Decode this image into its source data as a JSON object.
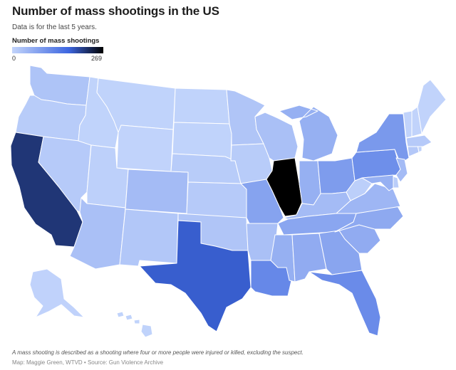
{
  "title": "Number of mass shootings in the US",
  "subtitle": "Data is for the last 5 years.",
  "legend": {
    "title": "Number of mass shootings",
    "min_label": "0",
    "max_label": "269",
    "min": 0,
    "max": 269,
    "color_low": "#c2d4fb",
    "color_mid": "#3d66e0",
    "color_high": "#000000"
  },
  "note": "A mass shooting is described as a shooting where four or more people were injured or killed, excluding the suspect.",
  "credit": "Map: Maggie Green, WTVD • Source: Gun Violence Archive",
  "map_data": {
    "type": "choropleth",
    "states": [
      {
        "name": "Washington",
        "value": 25
      },
      {
        "name": "Oregon",
        "value": 12
      },
      {
        "name": "California",
        "value": 215
      },
      {
        "name": "Nevada",
        "value": 15
      },
      {
        "name": "Idaho",
        "value": 2
      },
      {
        "name": "Montana",
        "value": 2
      },
      {
        "name": "Wyoming",
        "value": 1
      },
      {
        "name": "Utah",
        "value": 6
      },
      {
        "name": "Arizona",
        "value": 30
      },
      {
        "name": "Colorado",
        "value": 38
      },
      {
        "name": "New Mexico",
        "value": 20
      },
      {
        "name": "North Dakota",
        "value": 2
      },
      {
        "name": "South Dakota",
        "value": 2
      },
      {
        "name": "Nebraska",
        "value": 12
      },
      {
        "name": "Kansas",
        "value": 15
      },
      {
        "name": "Oklahoma",
        "value": 22
      },
      {
        "name": "Texas",
        "value": 175
      },
      {
        "name": "Minnesota",
        "value": 22
      },
      {
        "name": "Iowa",
        "value": 12
      },
      {
        "name": "Missouri",
        "value": 75
      },
      {
        "name": "Arkansas",
        "value": 30
      },
      {
        "name": "Louisiana",
        "value": 115
      },
      {
        "name": "Wisconsin",
        "value": 30
      },
      {
        "name": "Illinois",
        "value": 269
      },
      {
        "name": "Michigan",
        "value": 55
      },
      {
        "name": "Indiana",
        "value": 55
      },
      {
        "name": "Ohio",
        "value": 85
      },
      {
        "name": "Kentucky",
        "value": 38
      },
      {
        "name": "Tennessee",
        "value": 70
      },
      {
        "name": "Mississippi",
        "value": 55
      },
      {
        "name": "Alabama",
        "value": 62
      },
      {
        "name": "Georgia",
        "value": 72
      },
      {
        "name": "Florida",
        "value": 110
      },
      {
        "name": "South Carolina",
        "value": 62
      },
      {
        "name": "North Carolina",
        "value": 65
      },
      {
        "name": "Virginia",
        "value": 45
      },
      {
        "name": "West Virginia",
        "value": 8
      },
      {
        "name": "Pennsylvania",
        "value": 105
      },
      {
        "name": "New York",
        "value": 90
      },
      {
        "name": "New Jersey",
        "value": 38
      },
      {
        "name": "Delaware",
        "value": 10
      },
      {
        "name": "Maryland",
        "value": 55
      },
      {
        "name": "Connecticut",
        "value": 18
      },
      {
        "name": "Rhode Island",
        "value": 5
      },
      {
        "name": "Massachusetts",
        "value": 15
      },
      {
        "name": "Vermont",
        "value": 1
      },
      {
        "name": "New Hampshire",
        "value": 1
      },
      {
        "name": "Maine",
        "value": 1
      },
      {
        "name": "Alaska",
        "value": 3
      },
      {
        "name": "Hawaii",
        "value": 2
      }
    ]
  }
}
